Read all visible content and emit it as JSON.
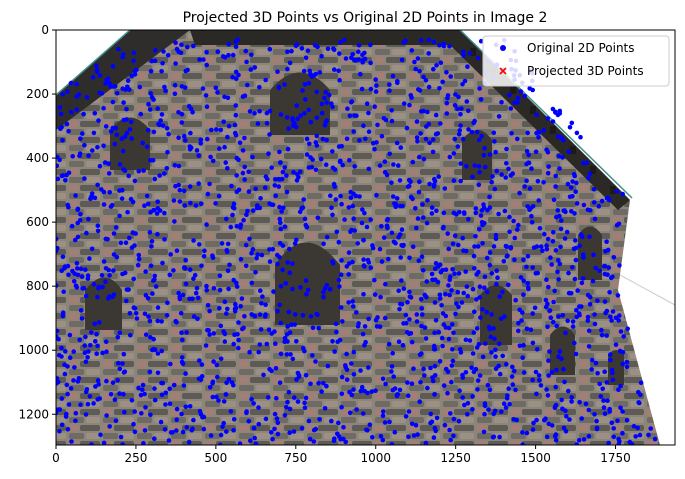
{
  "chart_data": {
    "type": "scatter",
    "title": "Projected 3D Points vs Original 2D Points in Image 2",
    "xlabel": "",
    "ylabel": "",
    "xlim": [
      0,
      1936
    ],
    "ylim": [
      1296,
      0
    ],
    "y_inverted": true,
    "x_ticks": [
      "0",
      "250",
      "500",
      "750",
      "1000",
      "1250",
      "1500",
      "1750"
    ],
    "x_tick_values": [
      0,
      250,
      500,
      750,
      1000,
      1250,
      1500,
      1750
    ],
    "y_ticks": [
      "0",
      "200",
      "400",
      "600",
      "800",
      "1000",
      "1200"
    ],
    "y_tick_values": [
      0,
      200,
      400,
      600,
      800,
      1000,
      1200
    ],
    "grid": false,
    "legend_position": "top-right",
    "background": "photograph of a stone castle tower wall",
    "series": [
      {
        "name": "Original 2D Points",
        "marker": "circle",
        "color": "#0000ff",
        "approx_count": 2000,
        "x_range": [
          0,
          1936
        ],
        "y_range": [
          30,
          1296
        ]
      },
      {
        "name": "Projected 3D Points",
        "marker": "x",
        "color": "#ff0000",
        "approx_count": 0
      }
    ]
  }
}
